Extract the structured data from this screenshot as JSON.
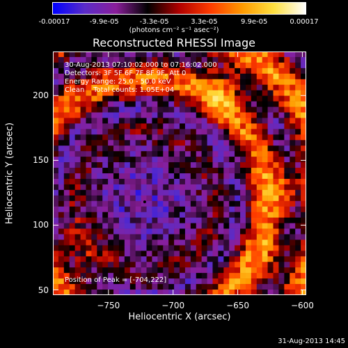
{
  "colorbar": {
    "tick_labels": [
      "-0.00017",
      "-9.9e-05",
      "-3.3e-05",
      "3.3e-05",
      "9.9e-05",
      "0.00017"
    ],
    "unit_label": "(photons cm⁻² s⁻¹ asec⁻²)",
    "colors": [
      "#0000ff",
      "#5a2cc8",
      "#8a1e9a",
      "#000000",
      "#b00000",
      "#ff3c00",
      "#ff9a00",
      "#ffe040",
      "#ffffff"
    ]
  },
  "chart_data": {
    "type": "heatmap",
    "title": "Reconstructed RHESSI Image",
    "xlabel": "Heliocentric X (arcsec)",
    "ylabel": "Heliocentric Y (arcsec)",
    "xlim": [
      -793,
      -597
    ],
    "ylim": [
      46,
      234
    ],
    "x_ticks": [
      -750,
      -700,
      -650,
      -600
    ],
    "y_ticks": [
      50,
      100,
      150,
      200
    ],
    "x_tick_labels": [
      "−750",
      "−700",
      "−650",
      "−600"
    ],
    "y_tick_labels": [
      "50",
      "100",
      "150",
      "200"
    ],
    "value_range": [
      -0.00017,
      0.00017
    ],
    "peak": [
      -704,
      222
    ],
    "annotations": [
      "30-Aug-2013 07:10:02.000 to 07:16:02.000",
      "Detectors: 3F 5F 6F 7F 8F 9F, Att 0",
      "Energy Range: 25.0 - 50.0 keV",
      "Clean    Total counts: 1.05E+04"
    ],
    "peak_label": "Position of Peak = [-704,222]"
  },
  "footer": {
    "date": "31-Aug-2013 14:45"
  }
}
